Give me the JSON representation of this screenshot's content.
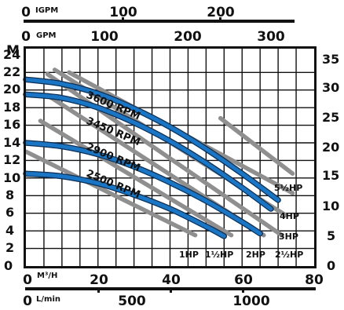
{
  "chart_data": {
    "type": "line",
    "title": "",
    "x_axes": {
      "top_igpm": {
        "unit": "IGPM",
        "ticks": [
          "0",
          "100",
          "200"
        ]
      },
      "top_gpm": {
        "unit": "GPM",
        "ticks": [
          "0",
          "100",
          "200",
          "300"
        ]
      },
      "bottom_m3h": {
        "unit": "M³/H",
        "ticks": [
          "0",
          "20",
          "40",
          "60",
          "80"
        ],
        "xlim": [
          0,
          80
        ]
      },
      "bottom_lmin": {
        "unit": "L/min",
        "ticks": [
          "0",
          "500",
          "1000"
        ]
      }
    },
    "y_axes": {
      "left_m": {
        "unit": "M",
        "ticks": [
          "0",
          "2",
          "4",
          "6",
          "8",
          "10",
          "12",
          "14",
          "16",
          "18",
          "20",
          "22",
          "24"
        ],
        "ylim": [
          0,
          24.7
        ]
      },
      "right_ft": {
        "ticks": [
          "0",
          "5",
          "10",
          "15",
          "20",
          "25",
          "30",
          "35"
        ]
      }
    },
    "grid": true,
    "rpm_series": [
      {
        "name": "3600 RPM",
        "color": "#1a76c4",
        "points": [
          [
            0,
            21.2
          ],
          [
            10,
            20.7
          ],
          [
            20,
            19.6
          ],
          [
            30,
            17.9
          ],
          [
            40,
            15.8
          ],
          [
            50,
            13.3
          ],
          [
            60,
            10.5
          ],
          [
            70,
            7.5
          ]
        ]
      },
      {
        "name": "3450 RPM",
        "color": "#1a76c4",
        "points": [
          [
            0,
            19.5
          ],
          [
            10,
            19.1
          ],
          [
            20,
            18.0
          ],
          [
            30,
            16.3
          ],
          [
            40,
            14.2
          ],
          [
            50,
            11.7
          ],
          [
            60,
            8.9
          ],
          [
            68,
            6.5
          ]
        ]
      },
      {
        "name": "2900 RPM",
        "color": "#1a76c4",
        "points": [
          [
            0,
            14.0
          ],
          [
            10,
            13.6
          ],
          [
            20,
            12.7
          ],
          [
            30,
            11.3
          ],
          [
            40,
            9.5
          ],
          [
            50,
            7.4
          ],
          [
            60,
            5.0
          ],
          [
            65,
            3.7
          ]
        ]
      },
      {
        "name": "2500 RPM",
        "color": "#1a76c4",
        "points": [
          [
            0,
            10.5
          ],
          [
            10,
            10.2
          ],
          [
            20,
            9.4
          ],
          [
            30,
            8.1
          ],
          [
            40,
            6.5
          ],
          [
            50,
            4.5
          ],
          [
            55,
            3.4
          ]
        ]
      }
    ],
    "hp_lines": [
      {
        "label": "1HP",
        "color": "#8f8f8f",
        "points": [
          [
            0,
            13.0
          ],
          [
            47,
            3.5
          ]
        ]
      },
      {
        "label": "1½HP",
        "color": "#8f8f8f",
        "points": [
          [
            4,
            16.5
          ],
          [
            57,
            3.5
          ]
        ]
      },
      {
        "label": "2HP",
        "color": "#8f8f8f",
        "points": [
          [
            6,
            19.4
          ],
          [
            66,
            3.5
          ]
        ]
      },
      {
        "label": "2½HP",
        "color": "#8f8f8f",
        "points": [
          [
            6,
            21.8
          ],
          [
            71,
            3.5
          ]
        ]
      },
      {
        "label": "3HP",
        "color": "#8f8f8f",
        "points": [
          [
            8,
            22.3
          ],
          [
            72,
            5.8
          ]
        ]
      },
      {
        "label": "4HP",
        "color": "#8f8f8f",
        "points": [
          [
            12,
            22.0
          ],
          [
            74,
            8.3
          ]
        ]
      },
      {
        "label": "5½HP",
        "color": "#8f8f8f",
        "points": [
          [
            54,
            16.8
          ],
          [
            74,
            10.5
          ]
        ]
      }
    ]
  }
}
